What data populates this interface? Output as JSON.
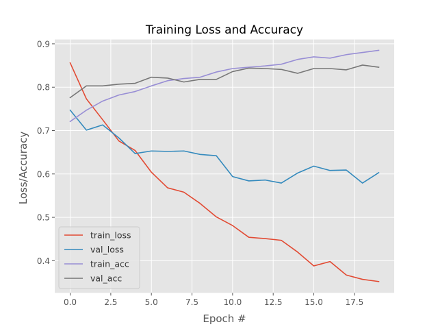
{
  "chart_data": {
    "type": "line",
    "title": "Training Loss and Accuracy",
    "xlabel": "Epoch #",
    "ylabel": "Loss/Accuracy",
    "xlim": [
      -0.95,
      19.95
    ],
    "ylim": [
      0.326,
      0.91
    ],
    "xticks": [
      0,
      2.5,
      5,
      7.5,
      10,
      12.5,
      15,
      17.5
    ],
    "xtick_labels": [
      "0.0",
      "2.5",
      "5.0",
      "7.5",
      "10.0",
      "12.5",
      "15.0",
      "17.5"
    ],
    "yticks": [
      0.4,
      0.5,
      0.6,
      0.7,
      0.8,
      0.9
    ],
    "ytick_labels": [
      "0.4",
      "0.5",
      "0.6",
      "0.7",
      "0.8",
      "0.9"
    ],
    "grid": true,
    "legend_position": "lower-left",
    "x": [
      0,
      1,
      2,
      3,
      4,
      5,
      6,
      7,
      8,
      9,
      10,
      11,
      12,
      13,
      14,
      15,
      16,
      17,
      18,
      19
    ],
    "series": [
      {
        "name": "train_loss",
        "color": "#E24A33",
        "values": [
          0.856,
          0.773,
          0.725,
          0.676,
          0.654,
          0.604,
          0.568,
          0.558,
          0.532,
          0.501,
          0.481,
          0.454,
          0.451,
          0.447,
          0.42,
          0.388,
          0.398,
          0.367,
          0.357,
          0.352
        ]
      },
      {
        "name": "val_loss",
        "color": "#348ABD",
        "values": [
          0.747,
          0.701,
          0.713,
          0.683,
          0.647,
          0.653,
          0.652,
          0.653,
          0.645,
          0.642,
          0.594,
          0.584,
          0.586,
          0.579,
          0.602,
          0.618,
          0.608,
          0.609,
          0.579,
          0.603
        ]
      },
      {
        "name": "train_acc",
        "color": "#988ED5",
        "values": [
          0.721,
          0.747,
          0.768,
          0.782,
          0.79,
          0.803,
          0.815,
          0.82,
          0.823,
          0.835,
          0.843,
          0.846,
          0.849,
          0.853,
          0.864,
          0.87,
          0.867,
          0.875,
          0.88,
          0.885
        ]
      },
      {
        "name": "val_acc",
        "color": "#777777",
        "values": [
          0.776,
          0.803,
          0.803,
          0.807,
          0.809,
          0.823,
          0.821,
          0.812,
          0.818,
          0.818,
          0.836,
          0.844,
          0.843,
          0.841,
          0.832,
          0.843,
          0.843,
          0.84,
          0.851,
          0.846
        ]
      }
    ]
  }
}
